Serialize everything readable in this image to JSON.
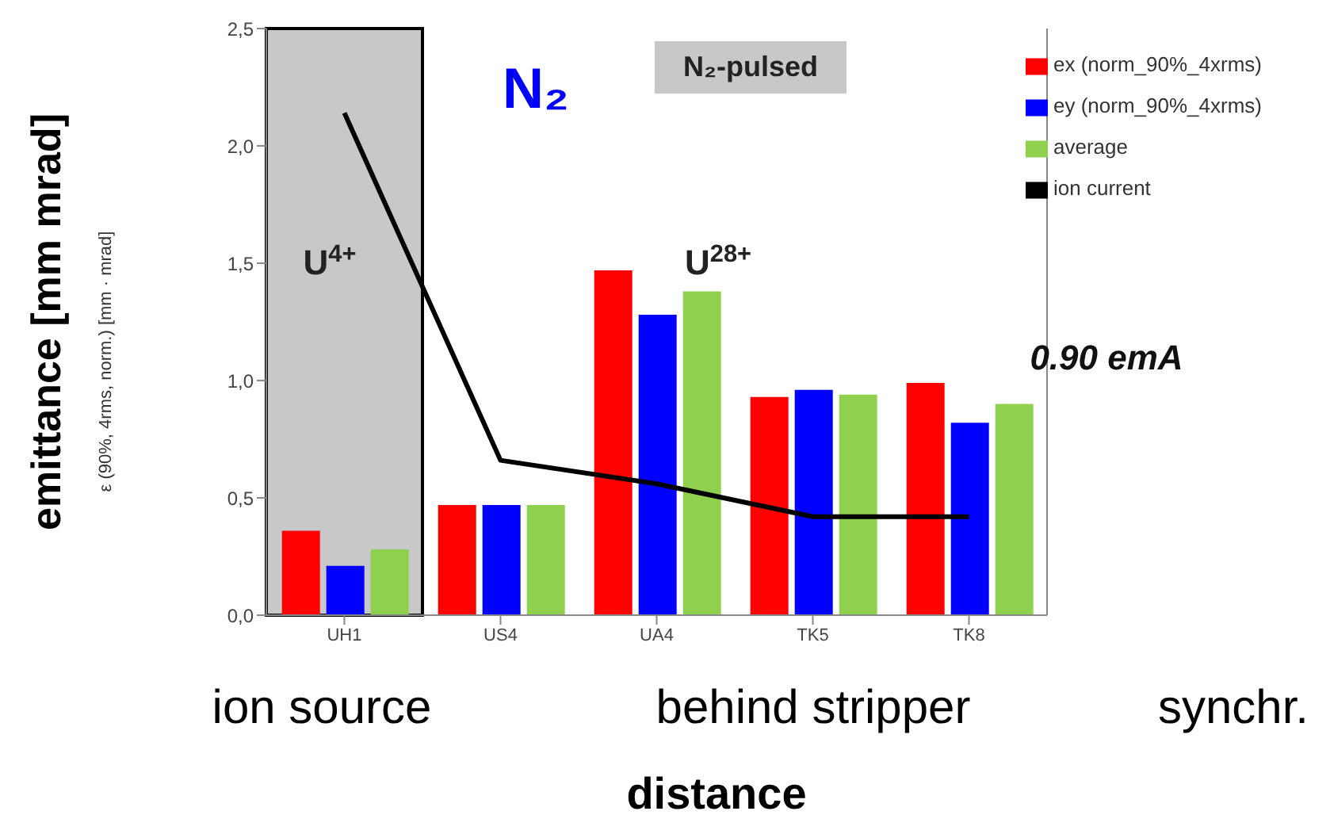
{
  "chart_data": {
    "type": "bar",
    "title": "N₂-pulsed",
    "xlabel": "distance",
    "ylabel": "emittance [mm mrad]",
    "categories": [
      "UH1",
      "US4",
      "UA4",
      "TK5",
      "TK8"
    ],
    "series": [
      {
        "name": "ex (norm_90%_4xrms)",
        "color": "#ff0000",
        "values": [
          0.36,
          0.47,
          1.47,
          0.93,
          0.99
        ]
      },
      {
        "name": "ey (norm_90%_4xrms)",
        "color": "#0000ff",
        "values": [
          0.21,
          0.47,
          1.28,
          0.96,
          0.82
        ]
      },
      {
        "name": "average",
        "color": "#8fd14f",
        "values": [
          0.28,
          0.47,
          1.38,
          0.94,
          0.9
        ]
      },
      {
        "name": "ion current",
        "type": "line",
        "color": "#000000",
        "marker": "none",
        "values": [
          2.14,
          0.66,
          0.56,
          0.42,
          0.42
        ]
      }
    ],
    "ylim": [
      0,
      2.5
    ],
    "yticks": [
      {
        "value": 0,
        "label": "0,0"
      },
      {
        "value": 0.5,
        "label": "0,5"
      },
      {
        "value": 1,
        "label": "1,0"
      },
      {
        "value": 1.5,
        "label": "1,5"
      },
      {
        "value": 2,
        "label": "2,0"
      },
      {
        "value": 2.5,
        "label": "2,5"
      }
    ],
    "bands": [
      {
        "axis": "x",
        "from": "UH1",
        "to": "UH1",
        "color": "#c8c8c8"
      }
    ],
    "annotations": [
      "ε (90%, 4rms, norm.) [mm · mrad]",
      "N₂",
      "U$^{4+}$",
      "U$^{28+}$",
      "0.90 emA",
      "ion source",
      "behind stripper",
      "synchr."
    ],
    "legend": "top right"
  }
}
